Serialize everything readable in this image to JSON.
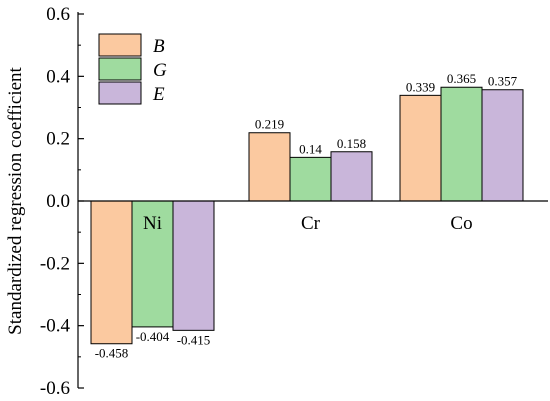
{
  "chart_data": {
    "type": "bar",
    "categories": [
      "Ni",
      "Cr",
      "Co"
    ],
    "series": [
      {
        "name": "B",
        "values": [
          -0.458,
          0.219,
          0.339
        ],
        "labels": [
          "-0.458",
          "0.219",
          "0.339"
        ],
        "color": "#FBC9A0"
      },
      {
        "name": "G",
        "values": [
          -0.404,
          0.14,
          0.365
        ],
        "labels": [
          "-0.404",
          "0.14",
          "0.365"
        ],
        "color": "#9FDB9F"
      },
      {
        "name": "E",
        "values": [
          -0.415,
          0.158,
          0.357
        ],
        "labels": [
          "-0.415",
          "0.158",
          "0.357"
        ],
        "color": "#C9B6DA"
      }
    ],
    "ylabel": "Standardized regression coefficient",
    "xlabel": "",
    "ylim": [
      -0.6,
      0.6
    ],
    "yticks": [
      -0.6,
      -0.4,
      -0.2,
      0.0,
      0.2,
      0.4,
      0.6
    ],
    "ytick_labels": [
      "-0.6",
      "-0.4",
      "-0.2",
      "0.0",
      "0.2",
      "0.4",
      "0.6"
    ],
    "grid": false,
    "legend_position": "top-left"
  }
}
